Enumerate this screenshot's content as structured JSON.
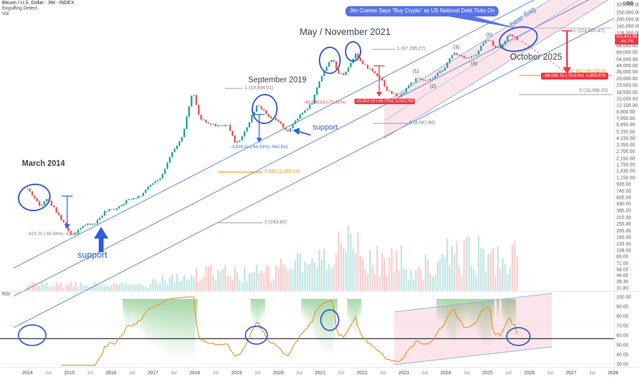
{
  "app": {
    "name": "TradingView-style chart"
  },
  "legend": {
    "symbol": "Bitcoin / U.S. Dollar · 3W · INDEX",
    "indicator_1": "Engulfing Detect",
    "indicator_2": "Vol"
  },
  "callout": {
    "text": "Jim Cramer Says \"Buy Crypto\" as US National Debt Ticks On"
  },
  "annotations": {
    "march_2014": "March 2014",
    "september_2019": "September 2019",
    "may_november_2021": "May / November 2021",
    "october_2025": "October 2025",
    "bear_flag": "bear flag",
    "support_1": "support",
    "support_2": "support",
    "wave_1": "(1)",
    "wave_2": "(2)",
    "wave_3": "(3)",
    "wave_4": "(4)",
    "wave_5": "(5)"
  },
  "fib_labels": {
    "ext_1_124000": "1 (124,000.47)",
    "ret_0382_35102": "0.382 (35,102.6)",
    "ret_0_16088": "0 (16,088.20)",
    "ext_1_67795": "1 (67,795.27)",
    "ext_1_19934": "1 (19,934.01)",
    "ext_0_8087": "0 (8,087.80)",
    "ret_0382_1085": "0.382 (1,085.14)",
    "ret_0_243": "0 (243.80)"
  },
  "measurements": {
    "drop_2014": "-423.75 (-65.84%) -42,375",
    "drop_2019": "-3,929.11 (-64.33%) -682,911",
    "drop_2022_a": "-42,088.53 (-72.81%)",
    "drop_2022_b": "-31,917.19 (-66.73%) -3,162,769",
    "projected_drop_2025": "-68,035.75 (-70.51%) -3,803,979"
  },
  "price_axis": {
    "currency": "USD",
    "badge": {
      "price": "101,621.98",
      "change": "-44.7%"
    },
    "ticks": [
      "320,000.00",
      "250,000.00",
      "200,000.00",
      "160,000.00",
      "128,000.00",
      "84,000.00",
      "68,000.00",
      "54,000.00",
      "44,000.00",
      "36,000.00",
      "29,000.00",
      "23,500.00",
      "18,500.00",
      "15,000.00",
      "12,100.00",
      "9,800.00",
      "7,950.00",
      "6,450.00",
      "5,150.00",
      "4,150.00",
      "3,350.00",
      "2,700.00",
      "2,150.00",
      "1,750.00",
      "1,430.00",
      "1,150.00",
      "935.00",
      "745.00",
      "605.00",
      "490.00",
      "395.00",
      "315.00",
      "255.00",
      "205.00",
      "165.00",
      "133.00",
      "108.00",
      "88.00",
      "71.00",
      "58.00",
      "48.00",
      "39.30",
      "31.80"
    ]
  },
  "rsi_axis": {
    "label": "RSI",
    "ticks": [
      "100.00",
      "90.00",
      "80.00",
      "70.00",
      "60.00",
      "50.00",
      "40.00",
      "30.00"
    ]
  },
  "time_axis": {
    "labels": [
      "2014",
      "Jul",
      "2015",
      "Jul",
      "2016",
      "Jul",
      "2017",
      "Jul",
      "2018",
      "Jul",
      "2019",
      "Jul",
      "2020",
      "Jul",
      "2021",
      "Jul",
      "2022",
      "Jul",
      "2023",
      "Jul",
      "2024",
      "Jul",
      "2025",
      "Jul",
      "2026",
      "Jul",
      "2027",
      "Jul",
      "2028"
    ]
  },
  "colors": {
    "up": "#26a69a",
    "down": "#ef5350",
    "drawing_blue": "#2a52d8",
    "light_blue": "#8fb0e8",
    "red": "#f23645",
    "orange": "#ff9800",
    "gray": "#787b86",
    "callout_bg": "#5873e8",
    "pink_fill": "rgba(233,56,92,0.13)",
    "rsi_line": "#e8932a",
    "green_fill": "#4caf50"
  },
  "chart_data": {
    "type": "candlestick",
    "title": "Bitcoin / U.S. Dollar, 3-week bars (INDEX), log scale, with volume overlay and RSI pane",
    "scale": "logarithmic",
    "x_range": [
      2014,
      2028
    ],
    "visible_price_range": [
      31.8,
      320000
    ],
    "bar_interval_weeks": 3,
    "current_close": 101621.98,
    "current_change_pct": "-44.7%",
    "price_anchors": [
      [
        2014.0,
        800
      ],
      [
        2014.15,
        620
      ],
      [
        2014.3,
        450
      ],
      [
        2014.45,
        600
      ],
      [
        2014.7,
        380
      ],
      [
        2015.05,
        170
      ],
      [
        2015.3,
        240
      ],
      [
        2015.6,
        255
      ],
      [
        2015.85,
        380
      ],
      [
        2016.1,
        420
      ],
      [
        2016.45,
        580
      ],
      [
        2016.7,
        640
      ],
      [
        2017.0,
        980
      ],
      [
        2017.2,
        1180
      ],
      [
        2017.45,
        2500
      ],
      [
        2017.7,
        4300
      ],
      [
        2017.95,
        19300
      ],
      [
        2018.1,
        8500
      ],
      [
        2018.25,
        7000
      ],
      [
        2018.5,
        6300
      ],
      [
        2018.8,
        6400
      ],
      [
        2018.95,
        3700
      ],
      [
        2019.1,
        3900
      ],
      [
        2019.5,
        12900
      ],
      [
        2019.75,
        8300
      ],
      [
        2020.0,
        7200
      ],
      [
        2020.2,
        5000
      ],
      [
        2020.55,
        9200
      ],
      [
        2020.8,
        13000
      ],
      [
        2021.0,
        29000
      ],
      [
        2021.1,
        38000
      ],
      [
        2021.3,
        58500
      ],
      [
        2021.4,
        35000
      ],
      [
        2021.55,
        33000
      ],
      [
        2021.7,
        44000
      ],
      [
        2021.85,
        67500
      ],
      [
        2022.0,
        47000
      ],
      [
        2022.2,
        39000
      ],
      [
        2022.45,
        29500
      ],
      [
        2022.6,
        19500
      ],
      [
        2022.9,
        15800
      ],
      [
        2023.1,
        23000
      ],
      [
        2023.3,
        28500
      ],
      [
        2023.6,
        26500
      ],
      [
        2023.85,
        35000
      ],
      [
        2024.0,
        44000
      ],
      [
        2024.2,
        68000
      ],
      [
        2024.35,
        61000
      ],
      [
        2024.55,
        57000
      ],
      [
        2024.75,
        63000
      ],
      [
        2024.9,
        95000
      ],
      [
        2025.05,
        102000
      ],
      [
        2025.15,
        84000
      ],
      [
        2025.3,
        78000
      ],
      [
        2025.45,
        108000
      ],
      [
        2025.55,
        122000
      ],
      [
        2025.65,
        112000
      ],
      [
        2025.76,
        101621.98
      ]
    ],
    "key_levels": {
      "fib_extension_1": 124000.47,
      "fib_0382_retracement": 35102.6,
      "fib_0": 16088.2,
      "cycle_high_2021": 67795.27,
      "cycle_high_2017": 19934.01,
      "level_2019": 8087.8,
      "fib_0382_2014_cycle": 1085.14,
      "fib_0_2014_cycle": 243.8
    },
    "rsi": {
      "range_shown": [
        30,
        100
      ],
      "horizontal_line_level": 56
    }
  }
}
